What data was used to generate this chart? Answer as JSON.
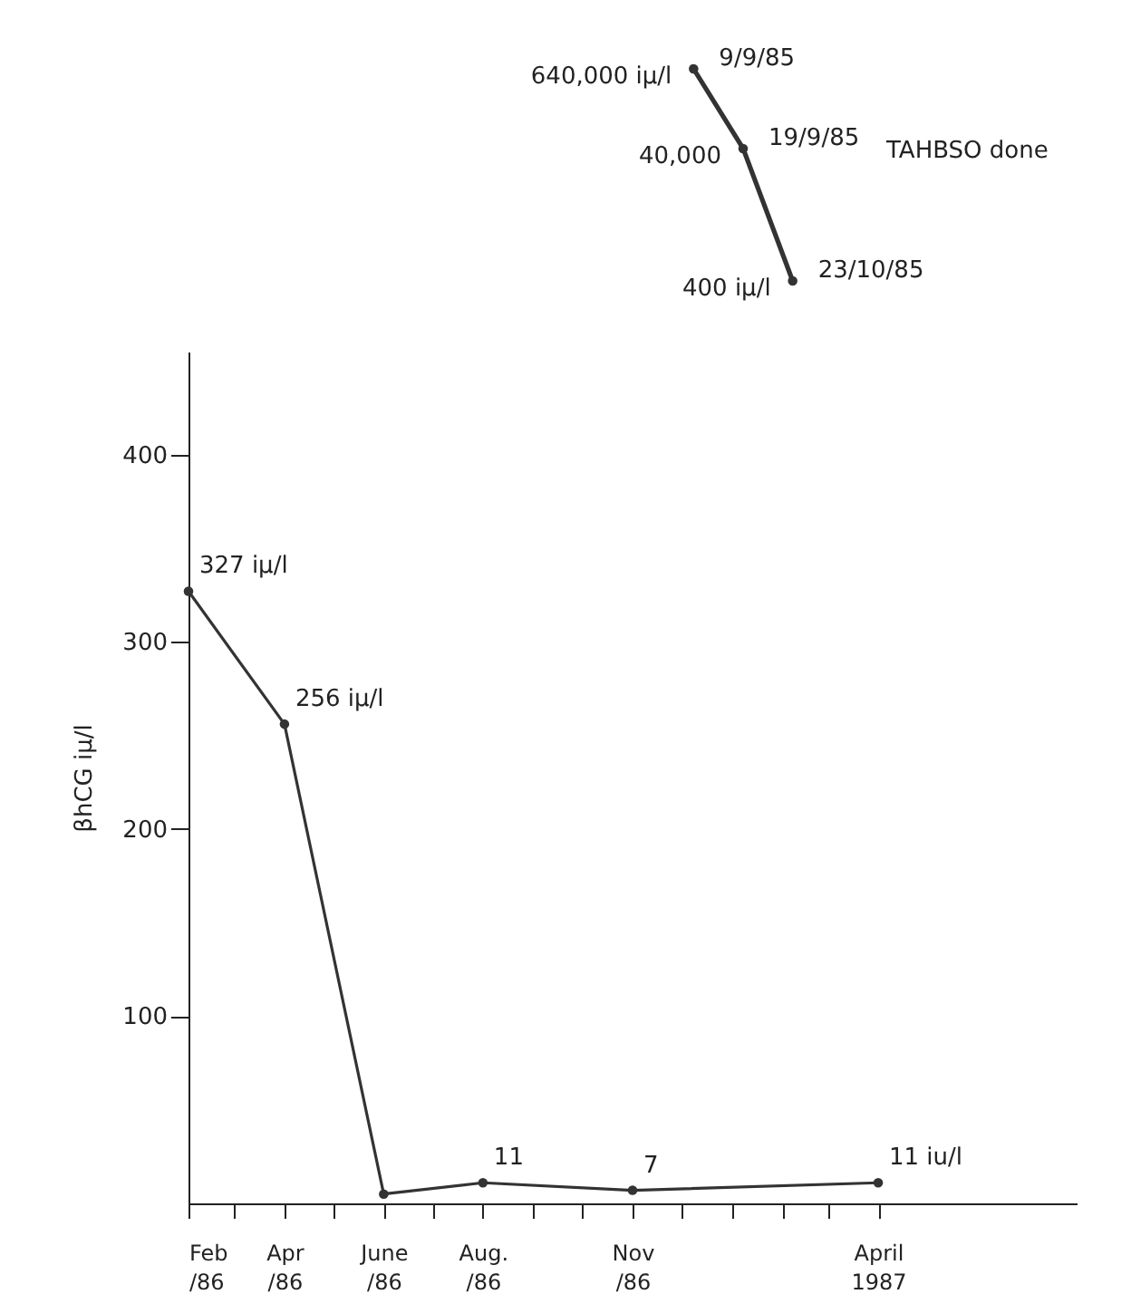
{
  "chart_data": [
    {
      "type": "line",
      "categories": [
        null,
        null,
        null
      ],
      "values": [
        640000,
        40000,
        400
      ],
      "value_labels": [
        "640,000  iμ/l",
        "40,000",
        "400  iμ/l"
      ],
      "log": true,
      "tick_labels": false,
      "color": "#333333",
      "marker": "circle",
      "annotations": [
        "9/9/85",
        "19/9/85",
        "23/10/85",
        "TAHBSO done"
      ]
    },
    {
      "type": "line",
      "x": [
        "1986-02",
        "1986-04",
        "1986-06",
        "1986-08",
        "1986-11",
        "1987-04"
      ],
      "values": [
        327,
        256,
        5,
        11,
        7,
        11
      ],
      "value_labels": [
        "327  iμ/l",
        "256  iμ/l",
        null,
        "11",
        "7",
        "11  iu/l"
      ],
      "color": "#333333",
      "marker": "circle",
      "ylabel": "βhCG iμ/l",
      "xlim": [
        "1986-02",
        "1987-08"
      ],
      "ylim": [
        0,
        455
      ],
      "yticks": [
        100,
        200,
        300,
        400
      ],
      "xticks": [
        {
          "value": "1986-02",
          "label": "Feb /86"
        },
        {
          "value": "1986-03",
          "label": null
        },
        {
          "value": "1986-04",
          "label": "Apr /86"
        },
        {
          "value": "1986-05",
          "label": null
        },
        {
          "value": "1986-06",
          "label": "June /86"
        },
        {
          "value": "1986-07",
          "label": null
        },
        {
          "value": "1986-08",
          "label": "Aug. /86"
        },
        {
          "value": "1986-09",
          "label": null
        },
        {
          "value": "1986-10",
          "label": null
        },
        {
          "value": "1986-11",
          "label": "Nov /86"
        },
        {
          "value": "1986-12",
          "label": null
        },
        {
          "value": "1987-01",
          "label": null
        },
        {
          "value": "1987-02",
          "label": null
        },
        {
          "value": "1987-03",
          "label": null
        },
        {
          "value": "1987-04",
          "label": "April 1987"
        }
      ]
    }
  ]
}
